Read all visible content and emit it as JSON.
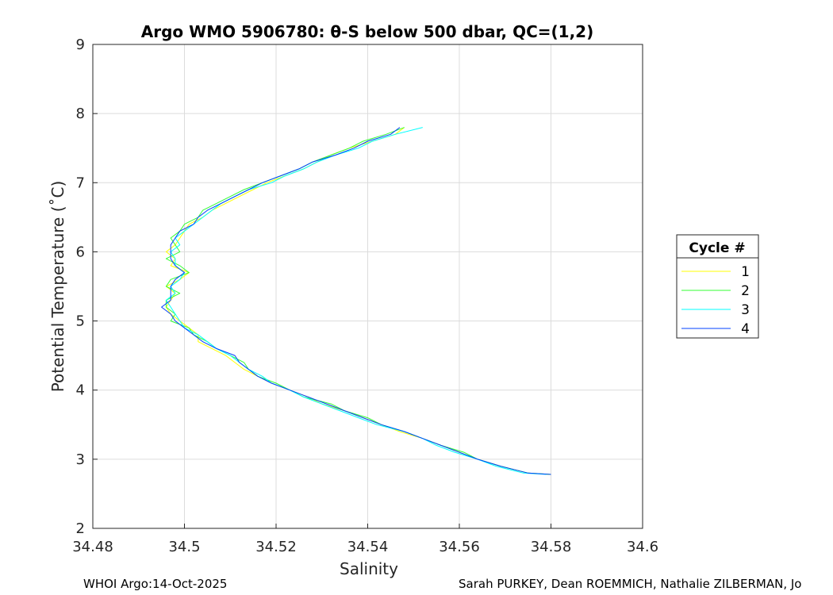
{
  "chart_data": {
    "type": "line",
    "title": "Argo WMO 5906780: θ-S below 500 dbar,  QC=(1,2)",
    "xlabel": "Salinity",
    "ylabel": "Potential Temperature (˚C)",
    "xlim": [
      34.48,
      34.6
    ],
    "ylim": [
      2,
      9
    ],
    "xticks": [
      "34.48",
      "34.5",
      "34.52",
      "34.54",
      "34.56",
      "34.58",
      "34.6"
    ],
    "yticks": [
      "2",
      "3",
      "4",
      "5",
      "6",
      "7",
      "8",
      "9"
    ],
    "grid": true,
    "legend": {
      "title": "Cycle #",
      "placement": "outside-right"
    },
    "theta": [
      7.8,
      7.7,
      7.6,
      7.5,
      7.4,
      7.3,
      7.2,
      7.1,
      7.0,
      6.9,
      6.8,
      6.7,
      6.6,
      6.5,
      6.4,
      6.3,
      6.2,
      6.1,
      6.0,
      5.9,
      5.8,
      5.7,
      5.6,
      5.5,
      5.4,
      5.3,
      5.2,
      5.1,
      5.0,
      4.9,
      4.8,
      4.7,
      4.6,
      4.5,
      4.4,
      4.3,
      4.2,
      4.1,
      4.0,
      3.9,
      3.8,
      3.7,
      3.6,
      3.5,
      3.4,
      3.3,
      3.2,
      3.1,
      3.0,
      2.9,
      2.8,
      2.78
    ],
    "series": [
      {
        "name": "1",
        "color": "#ffff00",
        "salinity": [
          34.548,
          34.546,
          34.541,
          34.536,
          34.532,
          34.529,
          34.526,
          34.522,
          34.518,
          34.515,
          34.512,
          34.509,
          34.506,
          34.504,
          34.501,
          34.5,
          34.499,
          34.498,
          34.496,
          34.498,
          34.497,
          34.501,
          34.499,
          34.496,
          34.498,
          34.497,
          34.496,
          34.497,
          34.499,
          34.501,
          34.503,
          34.503,
          34.506,
          34.509,
          34.511,
          34.513,
          34.516,
          34.519,
          34.523,
          34.527,
          34.53,
          34.535,
          34.539,
          34.543,
          34.547,
          34.552,
          34.556,
          34.56,
          34.564,
          34.569,
          34.575,
          34.58
        ]
      },
      {
        "name": "2",
        "color": "#33ff33",
        "salinity": [
          34.548,
          34.544,
          34.539,
          34.536,
          34.532,
          34.528,
          34.525,
          34.521,
          34.517,
          34.513,
          34.51,
          34.507,
          34.504,
          34.503,
          34.5,
          34.499,
          34.497,
          34.498,
          34.499,
          34.496,
          34.499,
          34.501,
          34.497,
          34.496,
          34.499,
          34.496,
          34.496,
          34.498,
          34.497,
          34.501,
          34.502,
          34.505,
          34.507,
          34.51,
          34.513,
          34.514,
          34.516,
          34.52,
          34.523,
          34.526,
          34.532,
          34.535,
          34.54,
          34.543,
          34.548,
          34.552,
          34.556,
          34.561,
          34.564,
          34.569,
          34.575,
          34.58
        ]
      },
      {
        "name": "3",
        "color": "#00ffff",
        "salinity": [
          34.552,
          34.546,
          34.541,
          34.538,
          34.533,
          34.529,
          34.526,
          34.522,
          34.519,
          34.514,
          34.511,
          34.508,
          34.506,
          34.504,
          34.502,
          34.5,
          34.498,
          34.499,
          34.497,
          34.498,
          34.498,
          34.5,
          34.499,
          34.497,
          34.498,
          34.496,
          34.497,
          34.498,
          34.499,
          34.5,
          34.503,
          34.505,
          34.507,
          34.51,
          34.512,
          34.514,
          34.517,
          34.519,
          34.523,
          34.526,
          34.53,
          34.534,
          34.538,
          34.542,
          34.548,
          34.552,
          34.555,
          34.559,
          34.564,
          34.568,
          34.574,
          34.579
        ]
      },
      {
        "name": "4",
        "color": "#0040ff",
        "salinity": [
          34.547,
          34.545,
          34.54,
          34.537,
          34.533,
          34.528,
          34.525,
          34.521,
          34.517,
          34.514,
          34.511,
          34.508,
          34.505,
          34.503,
          34.502,
          34.499,
          34.498,
          34.497,
          34.497,
          34.497,
          34.498,
          34.5,
          34.498,
          34.497,
          34.497,
          34.497,
          34.495,
          34.497,
          34.498,
          34.5,
          34.502,
          34.504,
          34.507,
          34.511,
          34.512,
          34.514,
          34.516,
          34.519,
          34.523,
          34.527,
          34.531,
          34.535,
          34.539,
          34.543,
          34.548,
          34.552,
          34.556,
          34.56,
          34.564,
          34.569,
          34.575,
          34.58
        ]
      }
    ]
  },
  "footer": {
    "left": "WHOI Argo:14-Oct-2025",
    "right": "Sarah PURKEY, Dean ROEMMICH, Nathalie ZILBERMAN, Jo"
  }
}
